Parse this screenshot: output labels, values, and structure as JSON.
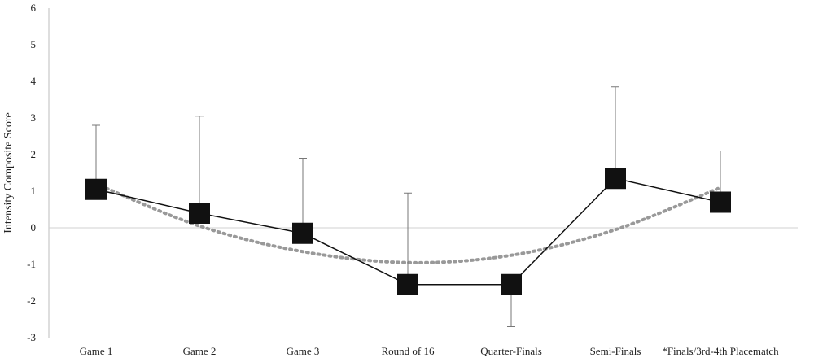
{
  "chart_data": {
    "type": "line",
    "title": "",
    "xlabel": "",
    "ylabel": "Intensity Composite Score",
    "ylim": [
      -3,
      6
    ],
    "yticks": [
      -3,
      -2,
      -1,
      0,
      1,
      2,
      3,
      4,
      5,
      6
    ],
    "categories": [
      "Game 1",
      "Game 2",
      "Game 3",
      "Round of 16",
      "Quarter-Finals",
      "Semi-Finals",
      "*Finals/3rd-4th Placematch"
    ],
    "series": [
      {
        "values": [
          1.05,
          0.4,
          -0.15,
          -1.55,
          -1.55,
          1.35,
          0.7
        ],
        "error_plus": [
          1.75,
          2.65,
          2.05,
          2.5,
          0.0,
          2.5,
          1.4
        ],
        "error_minus": [
          0.0,
          0.0,
          0.0,
          0.0,
          1.15,
          0.0,
          0.0
        ],
        "marker": "square",
        "color": "#111111"
      },
      {
        "type": "trendline",
        "style": "dotted",
        "values": [
          1.2,
          0.05,
          -0.65,
          -0.95,
          -0.75,
          -0.05,
          1.1
        ],
        "color": "#999999"
      }
    ],
    "grid": false,
    "zero_line": true,
    "legend": "none"
  }
}
